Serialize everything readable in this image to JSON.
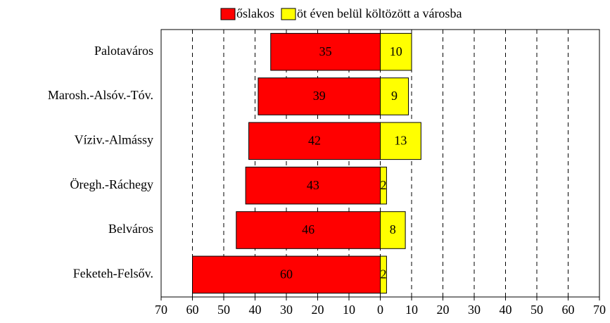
{
  "chart_data": {
    "type": "bar",
    "orientation": "horizontal",
    "diverging": true,
    "categories": [
      "Palotaváros",
      "Marosh.-Alsóv.-Tóv.",
      "Víziv.-Almássy",
      "Öregh.-Ráchegy",
      "Belváros",
      "Feketeh-Felsőv."
    ],
    "series": [
      {
        "name": "őslakos",
        "color": "#ff0000",
        "values": [
          -35,
          -39,
          -42,
          -43,
          -46,
          -60
        ],
        "value_labels": [
          "35",
          "39",
          "42",
          "43",
          "46",
          "60"
        ]
      },
      {
        "name": "öt éven belül költözött a városba",
        "color": "#ffff00",
        "values": [
          10,
          9,
          13,
          2,
          8,
          2
        ]
      }
    ],
    "xlim": [
      -70,
      70
    ],
    "xticks": [
      {
        "value": -70,
        "label": "70"
      },
      {
        "value": -60,
        "label": "60"
      },
      {
        "value": -50,
        "label": "50"
      },
      {
        "value": -40,
        "label": "40"
      },
      {
        "value": -30,
        "label": "30"
      },
      {
        "value": -20,
        "label": "20"
      },
      {
        "value": -10,
        "label": "10"
      },
      0,
      10,
      20,
      30,
      40,
      50,
      60,
      70
    ],
    "grid": true,
    "legend": "top"
  }
}
